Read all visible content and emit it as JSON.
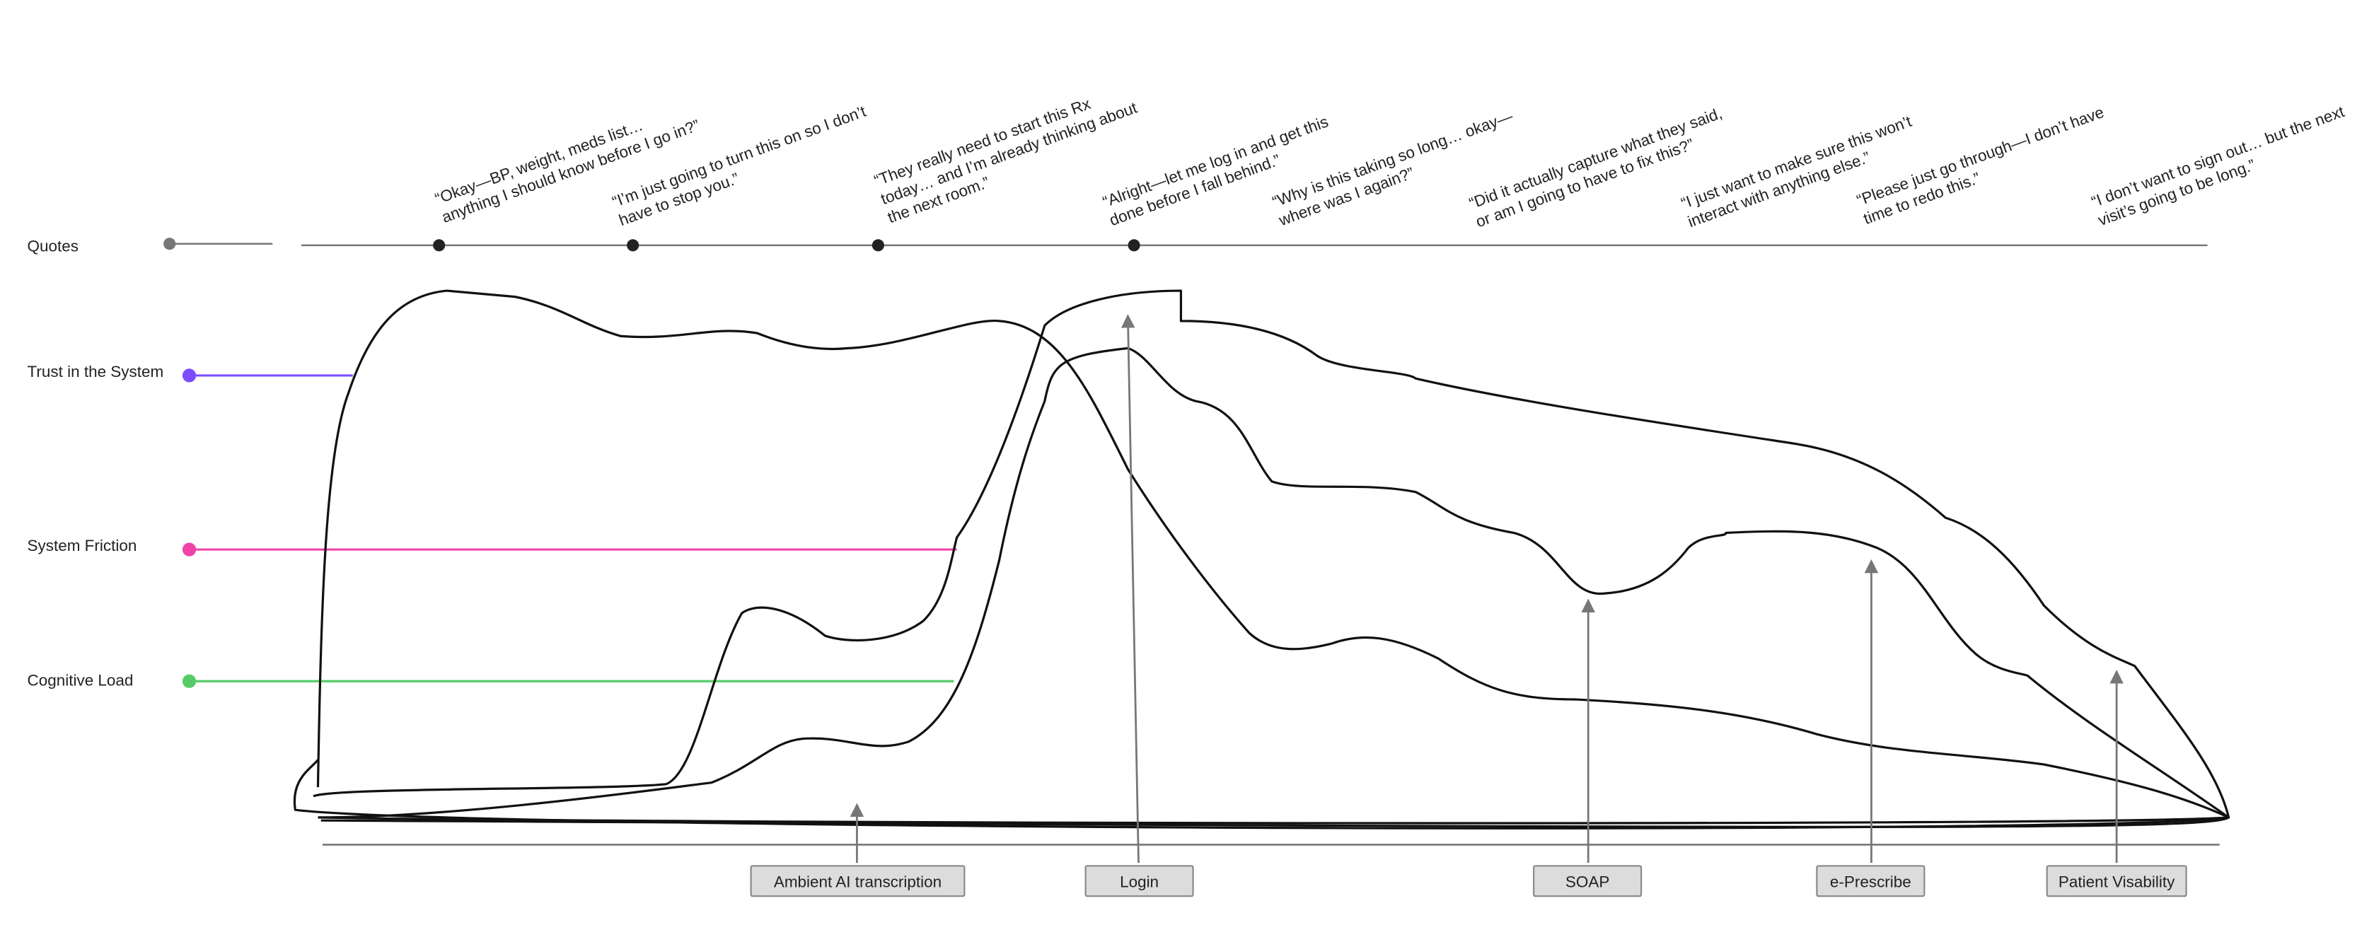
{
  "rows": [
    {
      "label": "Quotes"
    },
    {
      "label": "Trust in the System"
    },
    {
      "label": "System Friction"
    },
    {
      "label": "Cognitive Load"
    }
  ],
  "quotes": [
    {
      "lines": [
        "“Okay—BP, weight, meds list…",
        "anything I should know before I go in?”"
      ]
    },
    {
      "lines": [
        "“I’m just going to turn this on so I don’t",
        "have to stop you.”"
      ]
    },
    {
      "lines": [
        "“They really need to start this Rx",
        "today… and I’m already thinking about",
        "the next room.”"
      ]
    },
    {
      "lines": [
        "“Alright—let me log in and get this",
        "done before I fall behind.”"
      ]
    },
    {
      "lines": [
        "“Why is this taking so long… okay—",
        "where was I again?”"
      ]
    },
    {
      "lines": [
        "“Did it actually capture what they said,",
        "or am I going to have to fix this?”"
      ]
    },
    {
      "lines": [
        "“I just want to make sure this won’t",
        "interact with anything else.”"
      ]
    },
    {
      "lines": [
        "“Please just go through—I don’t have",
        "time to redo this.”"
      ]
    },
    {
      "lines": [
        "“I don’t want to sign out… but the next",
        "visit’s going to be long.”"
      ]
    }
  ],
  "touchpoints": [
    {
      "label": "Ambient AI transcription"
    },
    {
      "label": "Login"
    },
    {
      "label": "SOAP"
    },
    {
      "label": "e-Prescribe"
    },
    {
      "label": "Patient Visability"
    }
  ]
}
